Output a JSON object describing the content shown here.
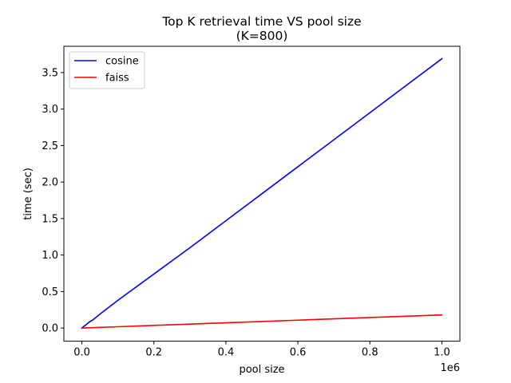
{
  "chart_data": {
    "type": "line",
    "title": "Top K retrieval time VS pool size",
    "subtitle": "(K=800)",
    "xlabel": "pool size",
    "ylabel": "time (sec)",
    "x_scale_label": "1e6",
    "xlim": [
      -0.05,
      1.05
    ],
    "ylim": [
      -0.18,
      3.86
    ],
    "x_ticks": [
      0.0,
      0.2,
      0.4,
      0.6,
      0.8,
      1.0
    ],
    "x_tick_labels": [
      "0.0",
      "0.2",
      "0.4",
      "0.6",
      "0.8",
      "1.0"
    ],
    "y_ticks": [
      0.0,
      0.5,
      1.0,
      1.5,
      2.0,
      2.5,
      3.0,
      3.5
    ],
    "y_tick_labels": [
      "0.0",
      "0.5",
      "1.0",
      "1.5",
      "2.0",
      "2.5",
      "3.0",
      "3.5"
    ],
    "grid": false,
    "legend_position": "top-left",
    "series": [
      {
        "name": "cosine",
        "color": "#0000ff",
        "x": [
          0.0,
          0.01,
          0.02,
          0.03,
          0.05,
          0.1,
          0.2,
          0.3,
          0.4,
          0.5,
          0.6,
          0.7,
          0.8,
          0.9,
          1.0
        ],
        "y": [
          0.0,
          0.04,
          0.08,
          0.11,
          0.19,
          0.38,
          0.74,
          1.1,
          1.47,
          1.84,
          2.21,
          2.58,
          2.95,
          3.32,
          3.69
        ]
      },
      {
        "name": "faiss",
        "color": "#ff0000",
        "x": [
          0.0,
          0.1,
          0.2,
          0.3,
          0.4,
          0.5,
          0.6,
          0.7,
          0.8,
          0.9,
          1.0
        ],
        "y": [
          0.0,
          0.018,
          0.036,
          0.054,
          0.072,
          0.09,
          0.108,
          0.126,
          0.144,
          0.162,
          0.18
        ]
      }
    ]
  }
}
